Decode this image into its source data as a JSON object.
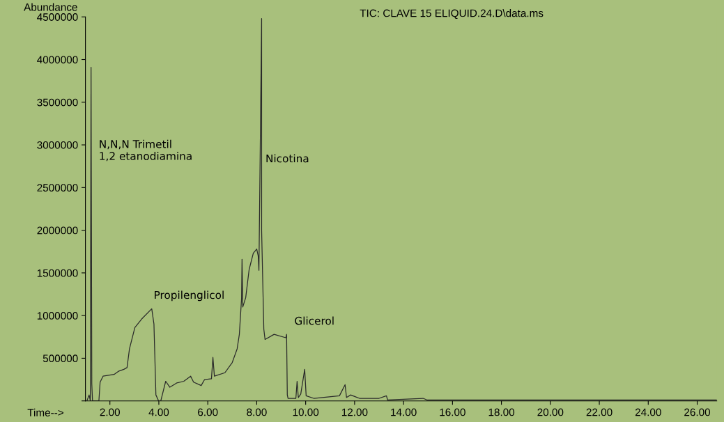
{
  "chart_data": {
    "type": "line",
    "title": "TIC: CLAVE 15 ELIQUID.24.D\\data.ms",
    "xlabel": "Time-->",
    "ylabel": "Abundance",
    "series": [
      {
        "color": "#2a2a2a",
        "x": [
          1.06,
          1.15,
          1.2,
          1.23,
          1.26,
          1.29,
          1.55,
          1.6,
          1.72,
          2.17,
          2.37,
          2.57,
          2.7,
          2.8,
          3.02,
          3.3,
          3.71,
          3.8,
          3.88,
          3.99,
          4.08,
          4.28,
          4.45,
          4.73,
          5.02,
          5.3,
          5.42,
          5.73,
          5.87,
          6.15,
          6.21,
          6.27,
          6.7,
          7.0,
          7.2,
          7.29,
          7.38,
          7.4,
          7.43,
          7.55,
          7.69,
          7.86,
          8.0,
          8.06,
          8.09,
          8.2,
          8.2,
          8.29,
          8.34,
          8.71,
          9.19,
          9.22,
          9.25,
          9.28,
          9.6,
          9.65,
          9.7,
          9.8,
          9.96,
          10.02,
          10.33,
          11.38,
          11.61,
          11.67,
          11.84,
          12.2,
          13.0,
          13.3,
          13.35,
          14.8,
          14.97,
          18.0,
          22.0,
          26.8
        ],
        "values": [
          0,
          70000,
          0,
          3910000,
          200000,
          0,
          0,
          220000,
          290000,
          310000,
          350000,
          370000,
          390000,
          610000,
          860000,
          960000,
          1080000,
          900000,
          70000,
          0,
          0,
          230000,
          160000,
          210000,
          230000,
          290000,
          220000,
          180000,
          250000,
          260000,
          510000,
          290000,
          330000,
          450000,
          610000,
          780000,
          1200000,
          1660000,
          1100000,
          1210000,
          1540000,
          1730000,
          1780000,
          1700000,
          1530000,
          4480000,
          2000000,
          840000,
          720000,
          780000,
          740000,
          780000,
          70000,
          30000,
          30000,
          230000,
          40000,
          80000,
          370000,
          60000,
          30000,
          60000,
          190000,
          40000,
          70000,
          30000,
          30000,
          60000,
          10000,
          30000,
          10000,
          10000,
          10000,
          10000
        ]
      }
    ],
    "xlim": [
      1.0,
      26.8
    ],
    "xticks": [
      {
        "value": 2,
        "label": "2.00"
      },
      {
        "value": 4,
        "label": "4.00"
      },
      {
        "value": 6,
        "label": "6.00"
      },
      {
        "value": 8,
        "label": "8.00"
      },
      {
        "value": 10,
        "label": "10.00"
      },
      {
        "value": 12,
        "label": "12.00"
      },
      {
        "value": 14,
        "label": "14.00"
      },
      {
        "value": 16,
        "label": "16.00"
      },
      {
        "value": 18,
        "label": "18.00"
      },
      {
        "value": 20,
        "label": "20.00"
      },
      {
        "value": 22,
        "label": "22.00"
      },
      {
        "value": 24,
        "label": "24.00"
      },
      {
        "value": 26,
        "label": "26.00"
      }
    ],
    "ylim": [
      0,
      4500000
    ],
    "yticks": [
      {
        "value": 0,
        "label": null
      },
      500000,
      1000000,
      1500000,
      2000000,
      2500000,
      3000000,
      3500000,
      4000000,
      4500000
    ],
    "annotations": [
      {
        "text": "N,N,N Trimetil\n1,2 etanodiamina",
        "x": 1.23,
        "y": 2900000
      },
      {
        "text": "Propilenglicol",
        "x": 3.71,
        "y": 1080000
      },
      {
        "text": "Nicotina",
        "x": 8.2,
        "y": 2800000
      },
      {
        "text": "Glicerol",
        "x": 9.22,
        "y": 777000
      }
    ],
    "grid": false,
    "legend": false,
    "marker": "none",
    "line_style": "solid"
  }
}
